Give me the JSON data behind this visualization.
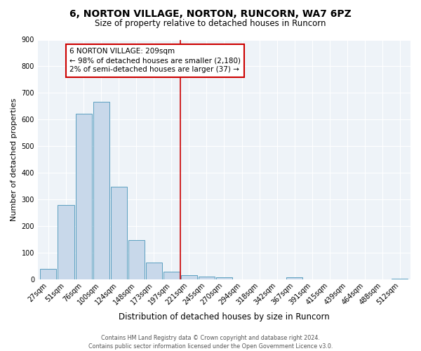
{
  "title": "6, NORTON VILLAGE, NORTON, RUNCORN, WA7 6PZ",
  "subtitle": "Size of property relative to detached houses in Runcorn",
  "xlabel": "Distribution of detached houses by size in Runcorn",
  "ylabel": "Number of detached properties",
  "bar_labels": [
    "27sqm",
    "51sqm",
    "76sqm",
    "100sqm",
    "124sqm",
    "148sqm",
    "173sqm",
    "197sqm",
    "221sqm",
    "245sqm",
    "270sqm",
    "294sqm",
    "318sqm",
    "342sqm",
    "367sqm",
    "391sqm",
    "415sqm",
    "439sqm",
    "464sqm",
    "488sqm",
    "512sqm"
  ],
  "bar_values": [
    42,
    280,
    622,
    668,
    348,
    148,
    65,
    30,
    17,
    13,
    10,
    0,
    0,
    0,
    9,
    0,
    0,
    0,
    0,
    0,
    5
  ],
  "bar_color": "#c8d8ea",
  "bar_edge_color": "#5b9fc0",
  "vline_color": "#cc0000",
  "annotation_text": "6 NORTON VILLAGE: 209sqm\n← 98% of detached houses are smaller (2,180)\n2% of semi-detached houses are larger (37) →",
  "annotation_box_color": "#ffffff",
  "annotation_box_edge_color": "#cc0000",
  "ylim": [
    0,
    900
  ],
  "yticks": [
    0,
    100,
    200,
    300,
    400,
    500,
    600,
    700,
    800,
    900
  ],
  "bg_color": "#eef3f8",
  "footer": "Contains HM Land Registry data © Crown copyright and database right 2024.\nContains public sector information licensed under the Open Government Licence v3.0.",
  "title_fontsize": 10,
  "subtitle_fontsize": 8.5,
  "ylabel_fontsize": 8,
  "xlabel_fontsize": 8.5,
  "tick_fontsize": 7,
  "annotation_fontsize": 7.5,
  "footer_fontsize": 5.8
}
